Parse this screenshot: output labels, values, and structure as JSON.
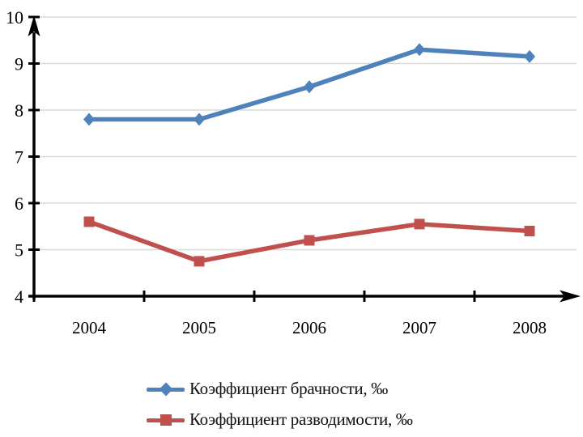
{
  "chart_data": {
    "type": "line",
    "title": "",
    "categories": [
      "2004",
      "2005",
      "2006",
      "2007",
      "2008"
    ],
    "series": [
      {
        "name": "Коэффициент брачности, ‰",
        "marker": "diamond",
        "color": "#4F81BD",
        "values": [
          7.8,
          7.8,
          8.5,
          9.3,
          9.15
        ]
      },
      {
        "name": "Коэффициент разводимости, ‰",
        "marker": "square",
        "color": "#C0504D",
        "values": [
          5.6,
          4.75,
          5.2,
          5.55,
          5.4
        ]
      }
    ],
    "xlabel": "",
    "ylabel": "",
    "ylim": [
      4,
      10
    ],
    "yticks": [
      4,
      5,
      6,
      7,
      8,
      9,
      10
    ],
    "grid": true,
    "gridline_color": "#D9D9D9",
    "axis_color": "#000000",
    "background": "#FFFFFF",
    "legend_position": "bottom"
  }
}
